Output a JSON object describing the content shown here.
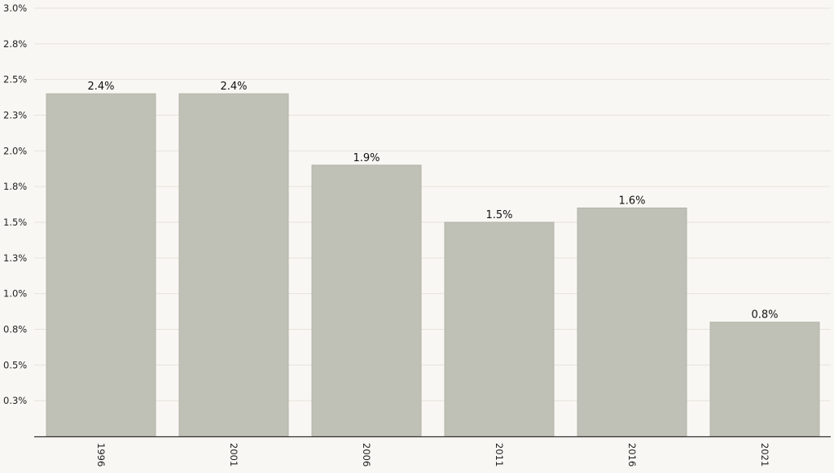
{
  "chart_data": {
    "type": "bar",
    "categories": [
      "1996",
      "2001",
      "2006",
      "2011",
      "2016",
      "2021"
    ],
    "values": [
      2.4,
      2.4,
      1.9,
      1.5,
      1.6,
      0.8
    ],
    "data_labels": [
      "2.4%",
      "2.4%",
      "1.9%",
      "1.5%",
      "1.6%",
      "0.8%"
    ],
    "y_ticks": [
      0.25,
      0.5,
      0.75,
      1.0,
      1.25,
      1.5,
      1.75,
      2.0,
      2.25,
      2.5,
      2.75,
      3.0
    ],
    "y_tick_labels": [
      "0.3%",
      "0.5%",
      "0.8%",
      "1.0%",
      "1.3%",
      "1.5%",
      "1.8%",
      "2.0%",
      "2.3%",
      "2.5%",
      "2.8%",
      "3.0%"
    ],
    "ylim": [
      0,
      3.0
    ],
    "title": "",
    "xlabel": "",
    "ylabel": "",
    "grid": true,
    "legend": "none",
    "colors": {
      "bar": "#c0c1b6",
      "bar_edge": "#b3b4a9",
      "background": "#f9f7f3",
      "grid": "#e6e3dc",
      "axis": "#333333"
    }
  }
}
